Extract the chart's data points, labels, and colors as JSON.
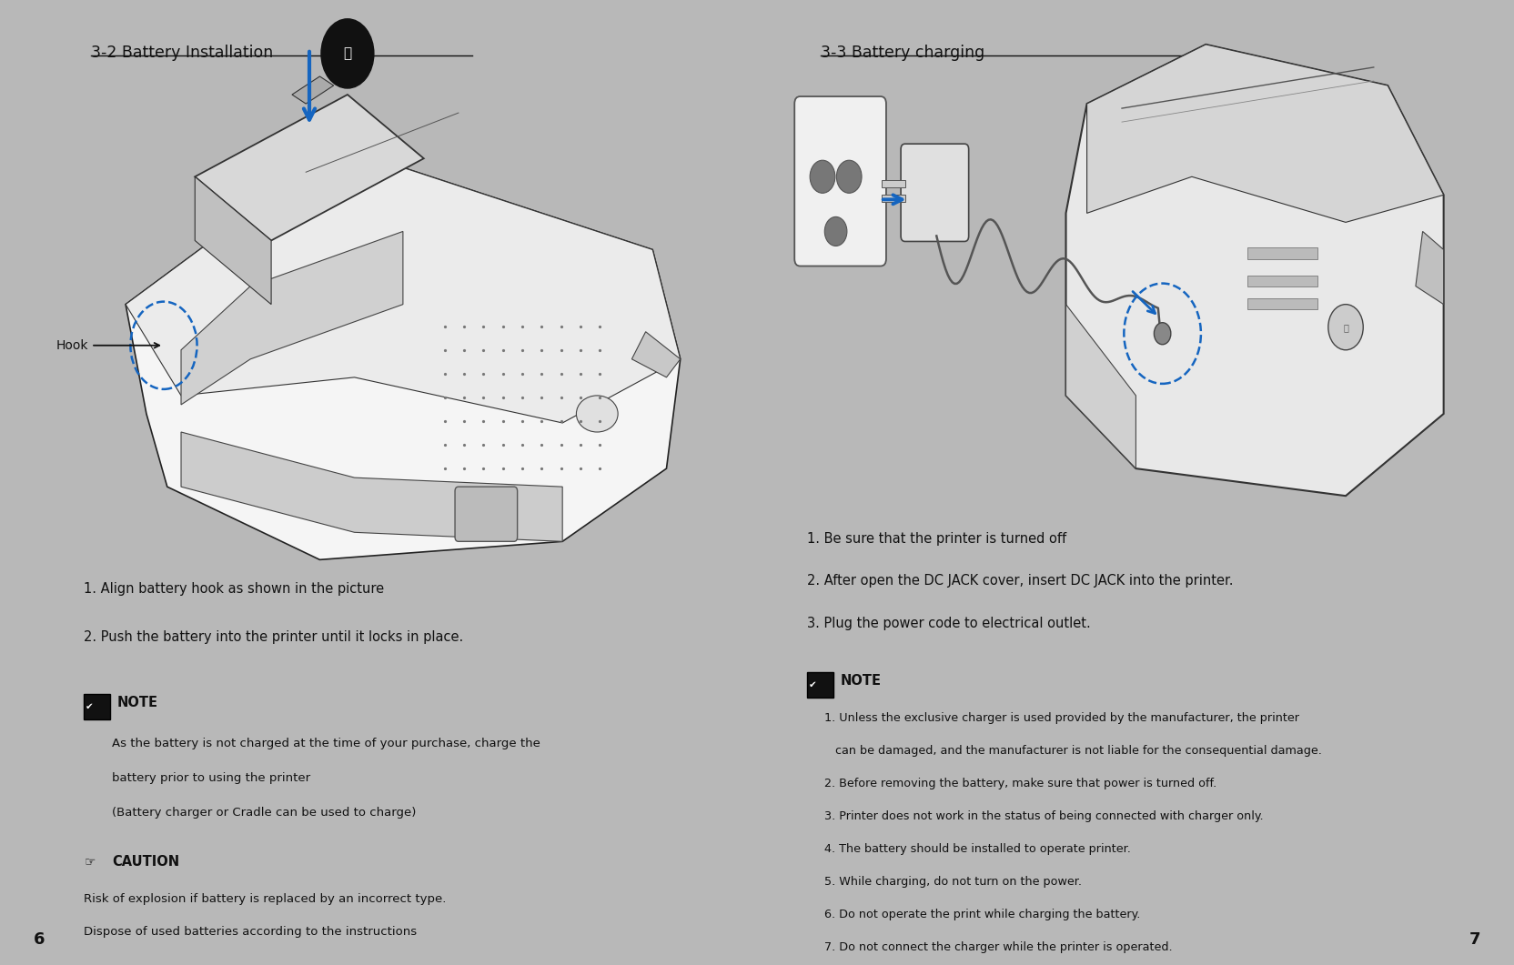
{
  "bg_color": "#b8b8b8",
  "left_panel_bg": "#ffffff",
  "right_panel_bg": "#ffffff",
  "left_title": "3-2 Battery Installation",
  "right_title": "3-3 Battery charging",
  "left_instructions": [
    "1. Align battery hook as shown in the picture",
    "2. Push the battery into the printer until it locks in place."
  ],
  "left_note_body": [
    "As the battery is not charged at the time of your purchase, charge the",
    "battery prior to using the printer",
    "(Battery charger or Cradle can be used to charge)"
  ],
  "left_caution_body": [
    "Risk of explosion if battery is replaced by an incorrect type.",
    "Dispose of used batteries according to the instructions"
  ],
  "right_instructions": [
    "1. Be sure that the printer is turned off",
    "2. After open the DC JACK cover, insert DC JACK into the printer.",
    "3. Plug the power code to electrical outlet."
  ],
  "right_note_items": [
    "1. Unless the exclusive charger is used provided by the manufacturer, the printer",
    "   can be damaged, and the manufacturer is not liable for the consequential damage.",
    "2. Before removing the battery, make sure that power is turned off.",
    "3. Printer does not work in the status of being connected with charger only.",
    "4. The battery should be installed to operate printer.",
    "5. While charging, do not turn on the power.",
    "6. Do not operate the print while charging the battery.",
    "7. Do not connect the charger while the printer is operated."
  ],
  "page_left": "6",
  "page_right": "7"
}
